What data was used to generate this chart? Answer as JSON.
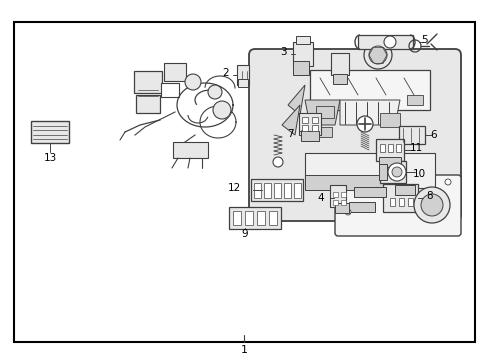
{
  "background_color": "#ffffff",
  "border_color": "#000000",
  "line_color": "#404040",
  "fig_width": 4.89,
  "fig_height": 3.6,
  "dpi": 100
}
